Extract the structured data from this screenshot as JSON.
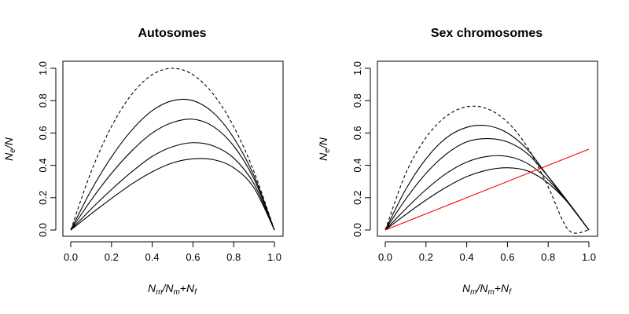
{
  "chart_data": [
    {
      "type": "line",
      "title": "Autosomes",
      "xlabel": "N_m/N_m+N_f",
      "ylabel": "N_e/N",
      "xlim": [
        0,
        1
      ],
      "ylim": [
        0,
        1
      ],
      "xticks": [
        "0.0",
        "0.2",
        "0.4",
        "0.6",
        "0.8",
        "1.0"
      ],
      "yticks": [
        "0.0",
        "0.2",
        "0.4",
        "0.6",
        "0.8",
        "1.0"
      ],
      "grid": false,
      "x": [
        0.0,
        0.1,
        0.2,
        0.3,
        0.4,
        0.5,
        0.6,
        0.7,
        0.8,
        0.9,
        1.0
      ],
      "series": [
        {
          "style": "dashed",
          "color": "#000000",
          "values": [
            0.0,
            0.36,
            0.64,
            0.84,
            0.96,
            1.0,
            0.96,
            0.84,
            0.64,
            0.36,
            0.0
          ]
        },
        {
          "style": "solid",
          "color": "#000000",
          "values": [
            0.0,
            0.245,
            0.452,
            0.618,
            0.738,
            0.8,
            0.8,
            0.725,
            0.57,
            0.335,
            0.0
          ]
        },
        {
          "style": "solid",
          "color": "#000000",
          "values": [
            0.0,
            0.185,
            0.35,
            0.49,
            0.6,
            0.665,
            0.685,
            0.64,
            0.52,
            0.315,
            0.0
          ]
        },
        {
          "style": "solid",
          "color": "#000000",
          "values": [
            0.0,
            0.13,
            0.25,
            0.36,
            0.455,
            0.515,
            0.54,
            0.52,
            0.445,
            0.285,
            0.0
          ]
        },
        {
          "style": "solid",
          "color": "#000000",
          "values": [
            0.0,
            0.1,
            0.195,
            0.285,
            0.36,
            0.415,
            0.44,
            0.435,
            0.385,
            0.26,
            0.0
          ]
        }
      ]
    },
    {
      "type": "line",
      "title": "Sex chromosomes",
      "xlabel": "N_m/N_m+N_f",
      "ylabel": "N_e/N",
      "xlim": [
        0,
        1
      ],
      "ylim": [
        0,
        1
      ],
      "xticks": [
        "0.0",
        "0.2",
        "0.4",
        "0.6",
        "0.8",
        "1.0"
      ],
      "yticks": [
        "0.0",
        "0.2",
        "0.4",
        "0.6",
        "0.8",
        "1.0"
      ],
      "grid": false,
      "x": [
        0.0,
        0.1,
        0.2,
        0.3,
        0.4,
        0.5,
        0.6,
        0.7,
        0.8,
        0.9,
        1.0
      ],
      "series": [
        {
          "style": "dashed",
          "color": "#000000",
          "values": [
            0.0,
            0.348,
            0.571,
            0.704,
            0.762,
            0.75,
            0.667,
            0.509,
            0.267,
            0.0,
            0.0
          ]
        },
        {
          "style": "solid",
          "color": "#000000",
          "values": [
            0.0,
            0.25,
            0.44,
            0.57,
            0.635,
            0.645,
            0.6,
            0.495,
            0.33,
            0.165,
            0.0
          ]
        },
        {
          "style": "solid",
          "color": "#000000",
          "values": [
            0.0,
            0.19,
            0.35,
            0.47,
            0.545,
            0.565,
            0.545,
            0.47,
            0.33,
            0.17,
            0.0
          ]
        },
        {
          "style": "solid",
          "color": "#000000",
          "values": [
            0.0,
            0.13,
            0.25,
            0.35,
            0.42,
            0.455,
            0.455,
            0.41,
            0.31,
            0.165,
            0.0
          ]
        },
        {
          "style": "solid",
          "color": "#000000",
          "values": [
            0.0,
            0.095,
            0.185,
            0.265,
            0.33,
            0.37,
            0.385,
            0.365,
            0.29,
            0.165,
            0.0
          ]
        },
        {
          "style": "solid",
          "color": "#ff0000",
          "values": [
            0.0,
            0.05,
            0.1,
            0.15,
            0.2,
            0.25,
            0.3,
            0.35,
            0.4,
            0.45,
            0.5
          ]
        }
      ]
    }
  ]
}
